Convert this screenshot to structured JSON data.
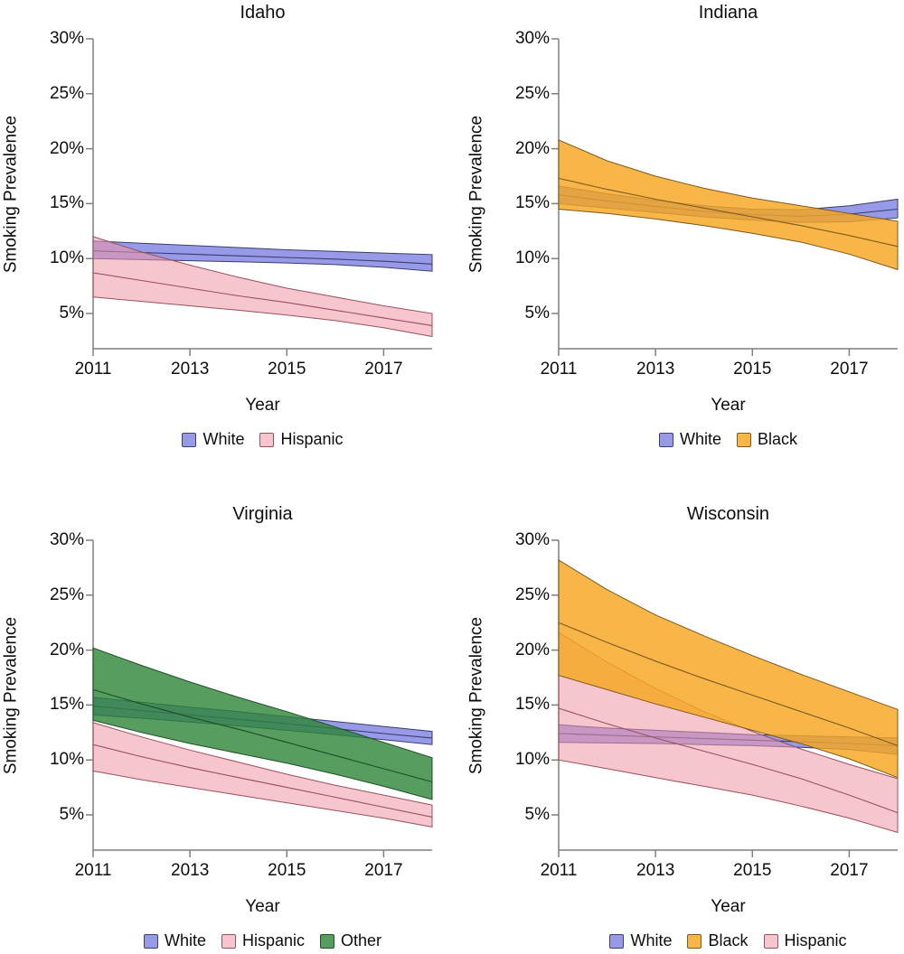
{
  "figure": {
    "background": "#ffffff",
    "unit": "percent"
  },
  "chart_data": [
    {
      "type": "area",
      "title": "Idaho",
      "xlabel": "Year",
      "ylabel": "Smoking Prevalence",
      "x": [
        2011,
        2012,
        2013,
        2014,
        2015,
        2016,
        2017,
        2018
      ],
      "xlim": [
        2011,
        2018
      ],
      "ylim": [
        2,
        30
      ],
      "x_ticks": [
        {
          "label": "2011",
          "value": 2011
        },
        {
          "label": "2013",
          "value": 2013
        },
        {
          "label": "2015",
          "value": 2015
        },
        {
          "label": "2017",
          "value": 2017
        }
      ],
      "y_ticks": [
        {
          "label": "30%",
          "value": 30
        },
        {
          "label": "25%",
          "value": 25
        },
        {
          "label": "20%",
          "value": 20
        },
        {
          "label": "15%",
          "value": 15
        },
        {
          "label": "10%",
          "value": 10
        },
        {
          "label": "5%",
          "value": 5
        }
      ],
      "series": [
        {
          "name": "White",
          "fill": "#575cd7",
          "fill_opacity": 0.62,
          "stroke": "#3a3d6e",
          "upper": [
            11.6,
            11.4,
            11.2,
            11.0,
            10.8,
            10.65,
            10.5,
            10.35
          ],
          "mid": [
            10.7,
            10.55,
            10.4,
            10.25,
            10.1,
            9.95,
            9.75,
            9.5
          ],
          "lower": [
            10.0,
            9.9,
            9.8,
            9.7,
            9.6,
            9.45,
            9.2,
            8.85
          ]
        },
        {
          "name": "Hispanic",
          "fill": "#f096a5",
          "fill_opacity": 0.55,
          "stroke": "#96525c",
          "upper": [
            12.0,
            10.6,
            9.4,
            8.3,
            7.3,
            6.5,
            5.7,
            5.0
          ],
          "mid": [
            8.7,
            8.0,
            7.3,
            6.6,
            6.0,
            5.3,
            4.6,
            3.9
          ],
          "lower": [
            6.5,
            6.1,
            5.7,
            5.3,
            4.85,
            4.35,
            3.7,
            2.9
          ]
        }
      ],
      "legend": [
        "White",
        "Hispanic"
      ]
    },
    {
      "type": "area",
      "title": "Indiana",
      "xlabel": "Year",
      "ylabel": "Smoking Prevalence",
      "x": [
        2011,
        2012,
        2013,
        2014,
        2015,
        2016,
        2017,
        2018
      ],
      "xlim": [
        2011,
        2018
      ],
      "ylim": [
        2,
        30
      ],
      "x_ticks": [
        {
          "label": "2011",
          "value": 2011
        },
        {
          "label": "2013",
          "value": 2013
        },
        {
          "label": "2015",
          "value": 2015
        },
        {
          "label": "2017",
          "value": 2017
        }
      ],
      "y_ticks": [
        {
          "label": "30%",
          "value": 30
        },
        {
          "label": "25%",
          "value": 25
        },
        {
          "label": "20%",
          "value": 20
        },
        {
          "label": "15%",
          "value": 15
        },
        {
          "label": "10%",
          "value": 10
        },
        {
          "label": "5%",
          "value": 5
        }
      ],
      "series": [
        {
          "name": "White",
          "fill": "#575cd7",
          "fill_opacity": 0.62,
          "stroke": "#3a3d6e",
          "upper": [
            16.6,
            15.9,
            15.3,
            14.8,
            14.5,
            14.45,
            14.8,
            15.4
          ],
          "mid": [
            15.8,
            15.25,
            14.75,
            14.3,
            14.0,
            13.85,
            14.05,
            14.5
          ],
          "lower": [
            15.0,
            14.6,
            14.2,
            13.8,
            13.5,
            13.3,
            13.35,
            13.7
          ]
        },
        {
          "name": "Black",
          "fill": "#f6a620",
          "fill_opacity": 0.82,
          "stroke": "#7d5a1e",
          "upper": [
            20.8,
            18.9,
            17.5,
            16.4,
            15.5,
            14.8,
            14.1,
            13.4
          ],
          "mid": [
            17.3,
            16.3,
            15.4,
            14.6,
            13.8,
            13.0,
            12.1,
            11.1
          ],
          "lower": [
            14.5,
            14.1,
            13.6,
            13.0,
            12.3,
            11.5,
            10.4,
            9.0
          ]
        }
      ],
      "legend": [
        "White",
        "Black"
      ]
    },
    {
      "type": "area",
      "title": "Virginia",
      "xlabel": "Year",
      "ylabel": "Smoking Prevalence",
      "x": [
        2011,
        2012,
        2013,
        2014,
        2015,
        2016,
        2017,
        2018
      ],
      "xlim": [
        2011,
        2018
      ],
      "ylim": [
        2,
        30
      ],
      "x_ticks": [
        {
          "label": "2011",
          "value": 2011
        },
        {
          "label": "2013",
          "value": 2013
        },
        {
          "label": "2015",
          "value": 2015
        },
        {
          "label": "2017",
          "value": 2017
        }
      ],
      "y_ticks": [
        {
          "label": "30%",
          "value": 30
        },
        {
          "label": "25%",
          "value": 25
        },
        {
          "label": "20%",
          "value": 20
        },
        {
          "label": "15%",
          "value": 15
        },
        {
          "label": "10%",
          "value": 10
        },
        {
          "label": "5%",
          "value": 5
        }
      ],
      "series": [
        {
          "name": "White",
          "fill": "#575cd7",
          "fill_opacity": 0.62,
          "stroke": "#3a3d6e",
          "upper": [
            15.7,
            15.25,
            14.8,
            14.4,
            13.95,
            13.5,
            13.05,
            12.6
          ],
          "mid": [
            14.9,
            14.5,
            14.1,
            13.7,
            13.3,
            12.85,
            12.4,
            12.0
          ],
          "lower": [
            14.1,
            13.8,
            13.45,
            13.1,
            12.7,
            12.3,
            11.85,
            11.4
          ]
        },
        {
          "name": "Hispanic",
          "fill": "#f096a5",
          "fill_opacity": 0.55,
          "stroke": "#96525c",
          "upper": [
            13.4,
            12.1,
            10.9,
            9.8,
            8.7,
            7.7,
            6.8,
            5.9
          ],
          "mid": [
            11.4,
            10.3,
            9.3,
            8.4,
            7.5,
            6.6,
            5.7,
            4.8
          ],
          "lower": [
            9.0,
            8.2,
            7.5,
            6.8,
            6.1,
            5.4,
            4.7,
            3.9
          ]
        },
        {
          "name": "Other",
          "fill": "#2c8437",
          "fill_opacity": 0.8,
          "stroke": "#1e4f26",
          "upper": [
            20.2,
            18.6,
            17.1,
            15.7,
            14.4,
            13.0,
            11.6,
            10.2
          ],
          "mid": [
            16.4,
            15.1,
            13.9,
            12.8,
            11.6,
            10.4,
            9.2,
            8.0
          ],
          "lower": [
            13.6,
            12.5,
            11.5,
            10.6,
            9.7,
            8.7,
            7.6,
            6.4
          ]
        }
      ],
      "legend": [
        "White",
        "Hispanic",
        "Other"
      ]
    },
    {
      "type": "area",
      "title": "Wisconsin",
      "xlabel": "Year",
      "ylabel": "Smoking Prevalence",
      "x": [
        2011,
        2012,
        2013,
        2014,
        2015,
        2016,
        2017,
        2018
      ],
      "xlim": [
        2011,
        2018
      ],
      "ylim": [
        2,
        30
      ],
      "x_ticks": [
        {
          "label": "2011",
          "value": 2011
        },
        {
          "label": "2013",
          "value": 2013
        },
        {
          "label": "2015",
          "value": 2015
        },
        {
          "label": "2017",
          "value": 2017
        }
      ],
      "y_ticks": [
        {
          "label": "30%",
          "value": 30
        },
        {
          "label": "25%",
          "value": 25
        },
        {
          "label": "20%",
          "value": 20
        },
        {
          "label": "15%",
          "value": 15
        },
        {
          "label": "10%",
          "value": 10
        },
        {
          "label": "5%",
          "value": 5
        }
      ],
      "series": [
        {
          "name": "White",
          "fill": "#575cd7",
          "fill_opacity": 0.62,
          "stroke": "#3a3d6e",
          "upper": [
            13.2,
            12.9,
            12.7,
            12.5,
            12.3,
            12.2,
            12.1,
            12.0
          ],
          "mid": [
            12.4,
            12.25,
            12.1,
            11.95,
            11.8,
            11.65,
            11.5,
            11.3
          ],
          "lower": [
            11.6,
            11.55,
            11.5,
            11.4,
            11.3,
            11.15,
            10.95,
            10.5
          ]
        },
        {
          "name": "Hispanic",
          "fill": "#f096a5",
          "fill_opacity": 0.55,
          "stroke": "#96525c",
          "upper": [
            21.6,
            18.9,
            16.5,
            14.4,
            12.6,
            11.0,
            9.6,
            8.3
          ],
          "mid": [
            14.7,
            13.3,
            12.0,
            10.8,
            9.6,
            8.3,
            6.8,
            5.2
          ],
          "lower": [
            10.0,
            9.2,
            8.4,
            7.6,
            6.8,
            5.8,
            4.7,
            3.4
          ]
        },
        {
          "name": "Black",
          "fill": "#f6a620",
          "fill_opacity": 0.82,
          "stroke": "#7d5a1e",
          "upper": [
            28.2,
            25.5,
            23.2,
            21.3,
            19.5,
            17.8,
            16.2,
            14.6
          ],
          "mid": [
            22.5,
            20.7,
            19.0,
            17.4,
            15.9,
            14.4,
            12.9,
            11.3
          ],
          "lower": [
            17.7,
            16.4,
            15.1,
            13.9,
            12.7,
            11.5,
            10.1,
            8.4
          ]
        }
      ],
      "legend": [
        "White",
        "Black",
        "Hispanic"
      ]
    }
  ]
}
